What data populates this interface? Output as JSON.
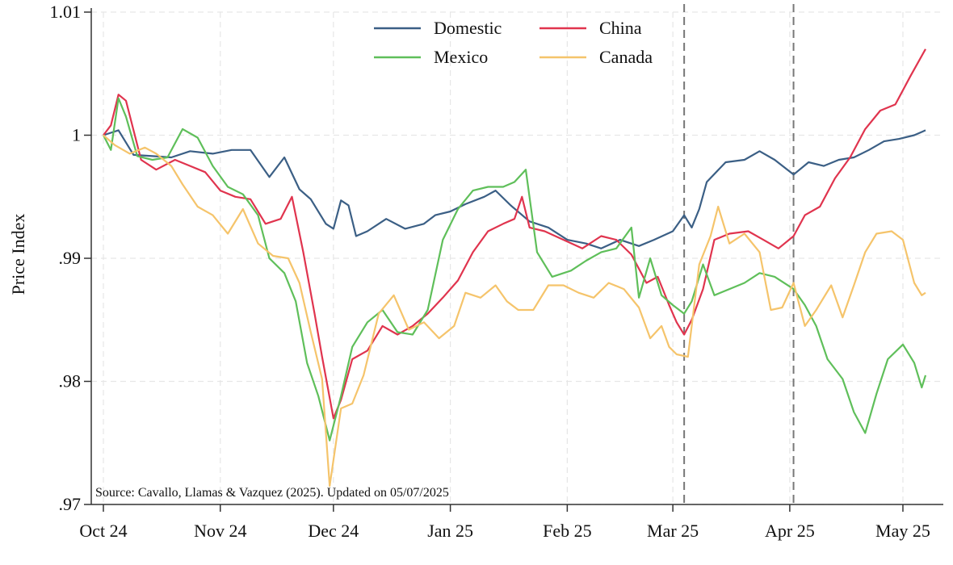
{
  "chart_data": {
    "type": "line",
    "title": "",
    "ylabel": "Price Index",
    "xlabel": "",
    "ylim": [
      0.97,
      1.01
    ],
    "yticks": [
      {
        "value": 0.97,
        "label": ".97"
      },
      {
        "value": 0.98,
        "label": ".98"
      },
      {
        "value": 0.99,
        "label": ".99"
      },
      {
        "value": 1.0,
        "label": "1"
      },
      {
        "value": 1.01,
        "label": "1.01"
      }
    ],
    "xlim": [
      "2024-10-01",
      "2025-05-10"
    ],
    "xticks": [
      {
        "date": "2024-10-01",
        "label": "Oct 24"
      },
      {
        "date": "2024-11-01",
        "label": "Nov 24"
      },
      {
        "date": "2024-12-01",
        "label": "Dec 24"
      },
      {
        "date": "2025-01-01",
        "label": "Jan 25"
      },
      {
        "date": "2025-02-01",
        "label": "Feb 25"
      },
      {
        "date": "2025-03-01",
        "label": "Mar 25"
      },
      {
        "date": "2025-04-01",
        "label": "Apr 25"
      },
      {
        "date": "2025-05-01",
        "label": "May 25"
      }
    ],
    "vlines": [
      "2025-03-04",
      "2025-04-02"
    ],
    "grid": true,
    "legend_position": "top",
    "source_note": "Source: Cavallo, Llamas & Vazquez (2025). Updated on 05/07/2025",
    "series": [
      {
        "name": "Domestic",
        "color": "#3b5f85",
        "points": [
          [
            "2024-10-01",
            1.0
          ],
          [
            "2024-10-05",
            1.0004
          ],
          [
            "2024-10-09",
            0.9984
          ],
          [
            "2024-10-14",
            0.9983
          ],
          [
            "2024-10-19",
            0.9982
          ],
          [
            "2024-10-24",
            0.9987
          ],
          [
            "2024-10-30",
            0.9985
          ],
          [
            "2024-11-04",
            0.9988
          ],
          [
            "2024-11-09",
            0.9988
          ],
          [
            "2024-11-14",
            0.9966
          ],
          [
            "2024-11-18",
            0.9982
          ],
          [
            "2024-11-22",
            0.9956
          ],
          [
            "2024-11-25",
            0.9948
          ],
          [
            "2024-11-29",
            0.9928
          ],
          [
            "2024-12-01",
            0.9924
          ],
          [
            "2024-12-03",
            0.9947
          ],
          [
            "2024-12-05",
            0.9943
          ],
          [
            "2024-12-07",
            0.9918
          ],
          [
            "2024-12-10",
            0.9922
          ],
          [
            "2024-12-15",
            0.9932
          ],
          [
            "2024-12-20",
            0.9924
          ],
          [
            "2024-12-25",
            0.9928
          ],
          [
            "2024-12-28",
            0.9935
          ],
          [
            "2025-01-01",
            0.9938
          ],
          [
            "2025-01-05",
            0.9944
          ],
          [
            "2025-01-10",
            0.995
          ],
          [
            "2025-01-13",
            0.9955
          ],
          [
            "2025-01-17",
            0.9943
          ],
          [
            "2025-01-22",
            0.993
          ],
          [
            "2025-01-27",
            0.9925
          ],
          [
            "2025-02-01",
            0.9915
          ],
          [
            "2025-02-06",
            0.9912
          ],
          [
            "2025-02-10",
            0.9908
          ],
          [
            "2025-02-15",
            0.9915
          ],
          [
            "2025-02-20",
            0.991
          ],
          [
            "2025-02-24",
            0.9915
          ],
          [
            "2025-03-01",
            0.9922
          ],
          [
            "2025-03-04",
            0.9935
          ],
          [
            "2025-03-06",
            0.9925
          ],
          [
            "2025-03-08",
            0.994
          ],
          [
            "2025-03-10",
            0.9962
          ],
          [
            "2025-03-15",
            0.9978
          ],
          [
            "2025-03-20",
            0.998
          ],
          [
            "2025-03-24",
            0.9987
          ],
          [
            "2025-03-28",
            0.998
          ],
          [
            "2025-04-02",
            0.9968
          ],
          [
            "2025-04-06",
            0.9978
          ],
          [
            "2025-04-10",
            0.9975
          ],
          [
            "2025-04-14",
            0.998
          ],
          [
            "2025-04-18",
            0.9982
          ],
          [
            "2025-04-22",
            0.9988
          ],
          [
            "2025-04-26",
            0.9995
          ],
          [
            "2025-04-30",
            0.9997
          ],
          [
            "2025-05-04",
            1.0
          ],
          [
            "2025-05-07",
            1.0004
          ]
        ]
      },
      {
        "name": "China",
        "color": "#e0344e",
        "points": [
          [
            "2024-10-01",
            1.0
          ],
          [
            "2024-10-03",
            1.0008
          ],
          [
            "2024-10-05",
            1.0033
          ],
          [
            "2024-10-07",
            1.0028
          ],
          [
            "2024-10-11",
            0.998
          ],
          [
            "2024-10-15",
            0.9972
          ],
          [
            "2024-10-20",
            0.998
          ],
          [
            "2024-10-24",
            0.9975
          ],
          [
            "2024-10-28",
            0.997
          ],
          [
            "2024-11-01",
            0.9955
          ],
          [
            "2024-11-05",
            0.995
          ],
          [
            "2024-11-09",
            0.9948
          ],
          [
            "2024-11-13",
            0.9928
          ],
          [
            "2024-11-17",
            0.9932
          ],
          [
            "2024-11-20",
            0.995
          ],
          [
            "2024-11-23",
            0.9905
          ],
          [
            "2024-11-26",
            0.9855
          ],
          [
            "2024-11-28",
            0.982
          ],
          [
            "2024-12-01",
            0.977
          ],
          [
            "2024-12-03",
            0.9785
          ],
          [
            "2024-12-06",
            0.9818
          ],
          [
            "2024-12-10",
            0.9825
          ],
          [
            "2024-12-14",
            0.9845
          ],
          [
            "2024-12-18",
            0.9838
          ],
          [
            "2024-12-22",
            0.9845
          ],
          [
            "2024-12-26",
            0.9855
          ],
          [
            "2024-12-30",
            0.9868
          ],
          [
            "2025-01-03",
            0.9882
          ],
          [
            "2025-01-07",
            0.9905
          ],
          [
            "2025-01-11",
            0.9922
          ],
          [
            "2025-01-15",
            0.9928
          ],
          [
            "2025-01-18",
            0.9932
          ],
          [
            "2025-01-20",
            0.995
          ],
          [
            "2025-01-22",
            0.9925
          ],
          [
            "2025-01-26",
            0.9922
          ],
          [
            "2025-01-31",
            0.9915
          ],
          [
            "2025-02-05",
            0.9908
          ],
          [
            "2025-02-10",
            0.9918
          ],
          [
            "2025-02-14",
            0.9915
          ],
          [
            "2025-02-18",
            0.9903
          ],
          [
            "2025-02-22",
            0.988
          ],
          [
            "2025-02-25",
            0.9885
          ],
          [
            "2025-02-28",
            0.9862
          ],
          [
            "2025-03-02",
            0.9848
          ],
          [
            "2025-03-04",
            0.9838
          ],
          [
            "2025-03-06",
            0.985
          ],
          [
            "2025-03-09",
            0.9875
          ],
          [
            "2025-03-12",
            0.9915
          ],
          [
            "2025-03-16",
            0.992
          ],
          [
            "2025-03-21",
            0.9922
          ],
          [
            "2025-03-25",
            0.9915
          ],
          [
            "2025-03-29",
            0.9908
          ],
          [
            "2025-04-02",
            0.9918
          ],
          [
            "2025-04-05",
            0.9935
          ],
          [
            "2025-04-09",
            0.9942
          ],
          [
            "2025-04-13",
            0.9965
          ],
          [
            "2025-04-17",
            0.9982
          ],
          [
            "2025-04-21",
            1.0005
          ],
          [
            "2025-04-25",
            1.002
          ],
          [
            "2025-04-29",
            1.0025
          ],
          [
            "2025-05-03",
            1.0048
          ],
          [
            "2025-05-07",
            1.007
          ]
        ]
      },
      {
        "name": "Mexico",
        "color": "#5fbf5a",
        "points": [
          [
            "2024-10-01",
            1.0
          ],
          [
            "2024-10-03",
            0.9988
          ],
          [
            "2024-10-05",
            1.003
          ],
          [
            "2024-10-07",
            1.0015
          ],
          [
            "2024-10-10",
            0.9983
          ],
          [
            "2024-10-14",
            0.998
          ],
          [
            "2024-10-18",
            0.9982
          ],
          [
            "2024-10-22",
            1.0005
          ],
          [
            "2024-10-26",
            0.9998
          ],
          [
            "2024-10-30",
            0.9975
          ],
          [
            "2024-11-03",
            0.9958
          ],
          [
            "2024-11-07",
            0.9952
          ],
          [
            "2024-11-11",
            0.9935
          ],
          [
            "2024-11-14",
            0.99
          ],
          [
            "2024-11-18",
            0.9888
          ],
          [
            "2024-11-21",
            0.9865
          ],
          [
            "2024-11-24",
            0.9815
          ],
          [
            "2024-11-27",
            0.9788
          ],
          [
            "2024-11-30",
            0.9752
          ],
          [
            "2024-12-03",
            0.9788
          ],
          [
            "2024-12-06",
            0.9828
          ],
          [
            "2024-12-10",
            0.9848
          ],
          [
            "2024-12-14",
            0.9858
          ],
          [
            "2024-12-18",
            0.984
          ],
          [
            "2024-12-22",
            0.9838
          ],
          [
            "2024-12-26",
            0.9858
          ],
          [
            "2024-12-30",
            0.9915
          ],
          [
            "2025-01-03",
            0.994
          ],
          [
            "2025-01-07",
            0.9955
          ],
          [
            "2025-01-11",
            0.9958
          ],
          [
            "2025-01-15",
            0.9958
          ],
          [
            "2025-01-18",
            0.9962
          ],
          [
            "2025-01-21",
            0.9972
          ],
          [
            "2025-01-24",
            0.9905
          ],
          [
            "2025-01-28",
            0.9885
          ],
          [
            "2025-02-02",
            0.989
          ],
          [
            "2025-02-06",
            0.9898
          ],
          [
            "2025-02-10",
            0.9905
          ],
          [
            "2025-02-14",
            0.9908
          ],
          [
            "2025-02-18",
            0.9925
          ],
          [
            "2025-02-20",
            0.9868
          ],
          [
            "2025-02-23",
            0.99
          ],
          [
            "2025-02-26",
            0.987
          ],
          [
            "2025-03-01",
            0.9862
          ],
          [
            "2025-03-04",
            0.9855
          ],
          [
            "2025-03-06",
            0.9865
          ],
          [
            "2025-03-09",
            0.9895
          ],
          [
            "2025-03-12",
            0.987
          ],
          [
            "2025-03-16",
            0.9875
          ],
          [
            "2025-03-20",
            0.988
          ],
          [
            "2025-03-24",
            0.9888
          ],
          [
            "2025-03-28",
            0.9885
          ],
          [
            "2025-04-02",
            0.9875
          ],
          [
            "2025-04-05",
            0.9862
          ],
          [
            "2025-04-08",
            0.9845
          ],
          [
            "2025-04-11",
            0.9818
          ],
          [
            "2025-04-15",
            0.9802
          ],
          [
            "2025-04-18",
            0.9775
          ],
          [
            "2025-04-21",
            0.9758
          ],
          [
            "2025-04-24",
            0.979
          ],
          [
            "2025-04-27",
            0.9818
          ],
          [
            "2025-05-01",
            0.983
          ],
          [
            "2025-05-04",
            0.9815
          ],
          [
            "2025-05-06",
            0.9795
          ],
          [
            "2025-05-07",
            0.9805
          ]
        ]
      },
      {
        "name": "Canada",
        "color": "#f5c46b",
        "points": [
          [
            "2024-10-01",
            1.0
          ],
          [
            "2024-10-04",
            0.9992
          ],
          [
            "2024-10-08",
            0.9985
          ],
          [
            "2024-10-12",
            0.999
          ],
          [
            "2024-10-15",
            0.9985
          ],
          [
            "2024-10-19",
            0.9975
          ],
          [
            "2024-10-22",
            0.996
          ],
          [
            "2024-10-26",
            0.9942
          ],
          [
            "2024-10-30",
            0.9935
          ],
          [
            "2024-11-03",
            0.992
          ],
          [
            "2024-11-07",
            0.994
          ],
          [
            "2024-11-11",
            0.9912
          ],
          [
            "2024-11-15",
            0.9902
          ],
          [
            "2024-11-19",
            0.99
          ],
          [
            "2024-11-22",
            0.988
          ],
          [
            "2024-11-25",
            0.984
          ],
          [
            "2024-11-28",
            0.9802
          ],
          [
            "2024-11-30",
            0.9715
          ],
          [
            "2024-12-03",
            0.9778
          ],
          [
            "2024-12-06",
            0.9782
          ],
          [
            "2024-12-09",
            0.9805
          ],
          [
            "2024-12-13",
            0.9855
          ],
          [
            "2024-12-17",
            0.987
          ],
          [
            "2024-12-21",
            0.9842
          ],
          [
            "2024-12-25",
            0.9848
          ],
          [
            "2024-12-29",
            0.9835
          ],
          [
            "2025-01-02",
            0.9845
          ],
          [
            "2025-01-05",
            0.9872
          ],
          [
            "2025-01-09",
            0.9868
          ],
          [
            "2025-01-13",
            0.9878
          ],
          [
            "2025-01-16",
            0.9865
          ],
          [
            "2025-01-19",
            0.9858
          ],
          [
            "2025-01-23",
            0.9858
          ],
          [
            "2025-01-27",
            0.9878
          ],
          [
            "2025-01-31",
            0.9878
          ],
          [
            "2025-02-04",
            0.9872
          ],
          [
            "2025-02-08",
            0.9868
          ],
          [
            "2025-02-12",
            0.988
          ],
          [
            "2025-02-16",
            0.9875
          ],
          [
            "2025-02-20",
            0.986
          ],
          [
            "2025-02-23",
            0.9835
          ],
          [
            "2025-02-26",
            0.9845
          ],
          [
            "2025-02-28",
            0.9828
          ],
          [
            "2025-03-02",
            0.9822
          ],
          [
            "2025-03-05",
            0.982
          ],
          [
            "2025-03-08",
            0.9895
          ],
          [
            "2025-03-11",
            0.9918
          ],
          [
            "2025-03-13",
            0.9942
          ],
          [
            "2025-03-16",
            0.9912
          ],
          [
            "2025-03-20",
            0.992
          ],
          [
            "2025-03-24",
            0.9905
          ],
          [
            "2025-03-27",
            0.9858
          ],
          [
            "2025-03-30",
            0.986
          ],
          [
            "2025-04-02",
            0.988
          ],
          [
            "2025-04-05",
            0.9845
          ],
          [
            "2025-04-08",
            0.9858
          ],
          [
            "2025-04-12",
            0.9878
          ],
          [
            "2025-04-15",
            0.9852
          ],
          [
            "2025-04-18",
            0.9878
          ],
          [
            "2025-04-21",
            0.9905
          ],
          [
            "2025-04-24",
            0.992
          ],
          [
            "2025-04-28",
            0.9922
          ],
          [
            "2025-05-01",
            0.9915
          ],
          [
            "2025-05-04",
            0.988
          ],
          [
            "2025-05-06",
            0.987
          ],
          [
            "2025-05-07",
            0.9872
          ]
        ]
      }
    ]
  }
}
